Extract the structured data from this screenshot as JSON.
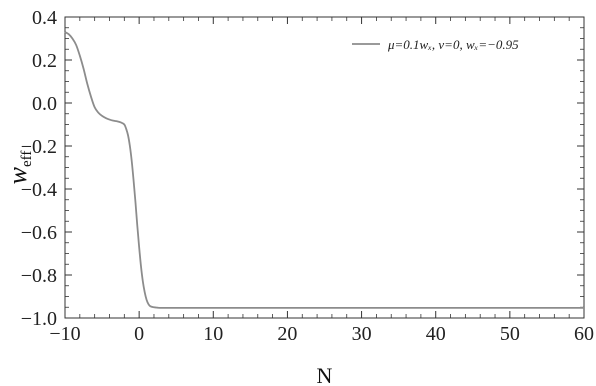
{
  "chart_data": {
    "type": "line",
    "xlabel": "N",
    "ylabel_base": "w",
    "ylabel_sub": "eff",
    "xlim": [
      -10,
      60
    ],
    "ylim": [
      -1.0,
      0.4
    ],
    "xticks": [
      -10,
      0,
      10,
      20,
      30,
      40,
      50,
      60
    ],
    "xtick_labels": [
      "−10",
      "0",
      "10",
      "20",
      "30",
      "40",
      "50",
      "60"
    ],
    "yticks": [
      0.4,
      0.2,
      0.0,
      -0.2,
      -0.4,
      -0.6,
      -0.8,
      -1.0
    ],
    "ytick_labels": [
      "0.4",
      "0.2",
      "0.0",
      "−0.2",
      "−0.4",
      "−0.6",
      "−0.8",
      "−1.0"
    ],
    "grid": false,
    "legend_position": "top-right",
    "colors": {
      "series": "#8c8c8c",
      "frame": "#333333"
    },
    "series": [
      {
        "name": "μ=0.1wₓ, ν=0, wₓ=−0.95",
        "x": [
          -10,
          -9.5,
          -9,
          -8.5,
          -8,
          -7.5,
          -7,
          -6.5,
          -6,
          -5.5,
          -5,
          -4.5,
          -4,
          -3.5,
          -3,
          -2.5,
          -2,
          -1.75,
          -1.5,
          -1.25,
          -1,
          -0.75,
          -0.5,
          -0.25,
          0,
          0.25,
          0.5,
          0.75,
          1,
          1.25,
          1.5,
          2,
          2.5,
          3,
          4,
          5,
          10,
          20,
          30,
          40,
          50,
          60
        ],
        "y": [
          0.33,
          0.32,
          0.3,
          0.27,
          0.22,
          0.16,
          0.09,
          0.03,
          -0.02,
          -0.045,
          -0.06,
          -0.07,
          -0.077,
          -0.082,
          -0.085,
          -0.09,
          -0.1,
          -0.12,
          -0.15,
          -0.2,
          -0.27,
          -0.36,
          -0.46,
          -0.57,
          -0.67,
          -0.76,
          -0.83,
          -0.88,
          -0.915,
          -0.935,
          -0.945,
          -0.95,
          -0.952,
          -0.953,
          -0.953,
          -0.953,
          -0.953,
          -0.953,
          -0.953,
          -0.953,
          -0.953,
          -0.953
        ]
      }
    ]
  }
}
